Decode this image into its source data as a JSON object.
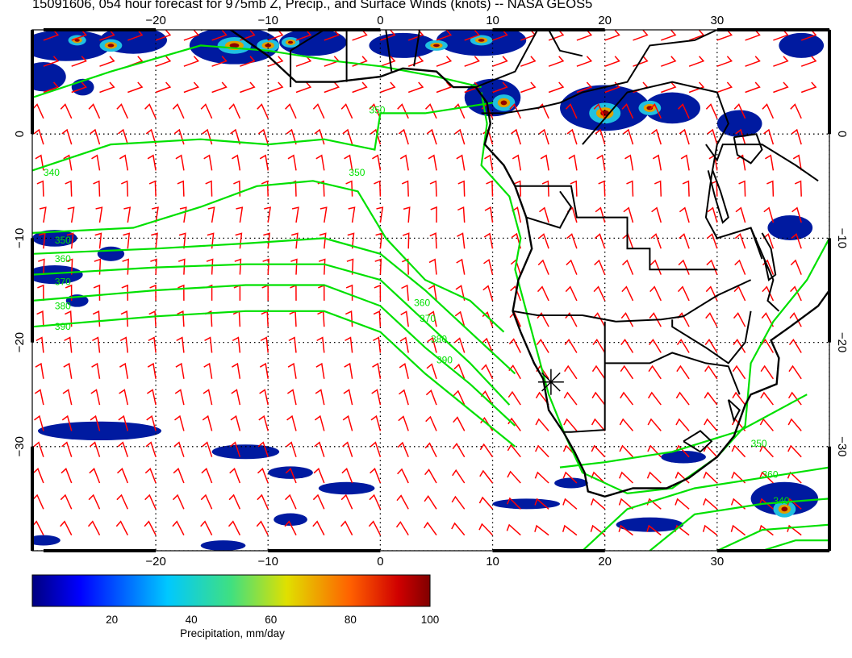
{
  "title": "15091606, 054 hour forecast for 975mb Z, Precip., and Surface Winds (knots) -- NASA GEOS5",
  "map": {
    "lon_range": [
      -31,
      40
    ],
    "lat_range": [
      -40,
      10
    ],
    "lon_ticks": [
      {
        "value": -20,
        "label": "−20"
      },
      {
        "value": -10,
        "label": "−10"
      },
      {
        "value": 0,
        "label": "0"
      },
      {
        "value": 10,
        "label": "10"
      },
      {
        "value": 20,
        "label": "20"
      },
      {
        "value": 30,
        "label": "30"
      }
    ],
    "lat_ticks": [
      {
        "value": 0,
        "label": "0"
      },
      {
        "value": -10,
        "label": "−10"
      },
      {
        "value": -20,
        "label": "−20"
      },
      {
        "value": -30,
        "label": "−30"
      }
    ],
    "contour_labels": [
      "340",
      "350",
      "360",
      "370",
      "380",
      "390"
    ],
    "colors": {
      "barb": "#ff0000",
      "contour": "#00e000",
      "coast": "#000000",
      "grid": "#000000"
    },
    "marker": {
      "lon": 15.2,
      "lat": -23.8
    }
  },
  "colorbar": {
    "ticks": [
      "20",
      "40",
      "60",
      "80",
      "100"
    ],
    "label": "Precipitation, mm/day",
    "min": 0,
    "max": 100
  }
}
